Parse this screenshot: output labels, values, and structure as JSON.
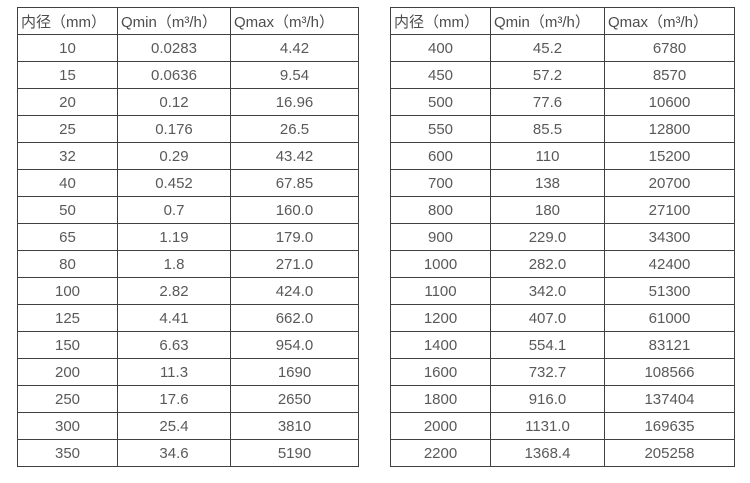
{
  "colors": {
    "background": "#ffffff",
    "border": "#404040",
    "text": "#595959"
  },
  "tables": [
    {
      "name": "flow-range-table-small-diameters",
      "headers": [
        "内径（mm）",
        "Qmin（m³/h）",
        "Qmax（m³/h）"
      ],
      "rows": [
        [
          "10",
          "0.0283",
          "4.42"
        ],
        [
          "15",
          "0.0636",
          "9.54"
        ],
        [
          "20",
          "0.12",
          "16.96"
        ],
        [
          "25",
          "0.176",
          "26.5"
        ],
        [
          "32",
          "0.29",
          "43.42"
        ],
        [
          "40",
          "0.452",
          "67.85"
        ],
        [
          "50",
          "0.7",
          "160.0"
        ],
        [
          "65",
          "1.19",
          "179.0"
        ],
        [
          "80",
          "1.8",
          "271.0"
        ],
        [
          "100",
          "2.82",
          "424.0"
        ],
        [
          "125",
          "4.41",
          "662.0"
        ],
        [
          "150",
          "6.63",
          "954.0"
        ],
        [
          "200",
          "11.3",
          "1690"
        ],
        [
          "250",
          "17.6",
          "2650"
        ],
        [
          "300",
          "25.4",
          "3810"
        ],
        [
          "350",
          "34.6",
          "5190"
        ]
      ]
    },
    {
      "name": "flow-range-table-large-diameters",
      "headers": [
        "内径（mm）",
        "Qmin（m³/h）",
        "Qmax（m³/h）"
      ],
      "rows": [
        [
          "400",
          "45.2",
          "6780"
        ],
        [
          "450",
          "57.2",
          "8570"
        ],
        [
          "500",
          "77.6",
          "10600"
        ],
        [
          "550",
          "85.5",
          "12800"
        ],
        [
          "600",
          "110",
          "15200"
        ],
        [
          "700",
          "138",
          "20700"
        ],
        [
          "800",
          "180",
          "27100"
        ],
        [
          "900",
          "229.0",
          "34300"
        ],
        [
          "1000",
          "282.0",
          "42400"
        ],
        [
          "1100",
          "342.0",
          "51300"
        ],
        [
          "1200",
          "407.0",
          "61000"
        ],
        [
          "1400",
          "554.1",
          "83121"
        ],
        [
          "1600",
          "732.7",
          "108566"
        ],
        [
          "1800",
          "916.0",
          "137404"
        ],
        [
          "2000",
          "1131.0",
          "169635"
        ],
        [
          "2200",
          "1368.4",
          "205258"
        ]
      ]
    }
  ]
}
